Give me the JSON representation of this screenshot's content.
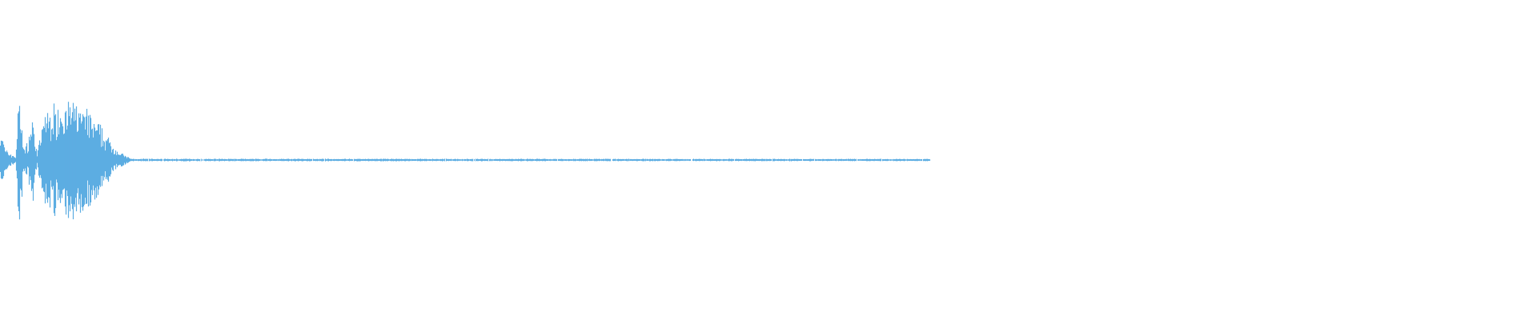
{
  "waveform": {
    "color": "#5dade2",
    "background": "#ffffff",
    "played_fraction_of_width": 0.605,
    "envelope": [
      {
        "t": 0.0,
        "amp": 0.35
      },
      {
        "t": 0.003,
        "amp": 0.1
      },
      {
        "t": 0.01,
        "amp": 0.03
      },
      {
        "t": 0.012,
        "amp": 0.62
      },
      {
        "t": 0.016,
        "amp": 0.08
      },
      {
        "t": 0.021,
        "amp": 0.4
      },
      {
        "t": 0.024,
        "amp": 0.06
      },
      {
        "t": 0.029,
        "amp": 0.45
      },
      {
        "t": 0.04,
        "amp": 0.55
      },
      {
        "t": 0.055,
        "amp": 0.5
      },
      {
        "t": 0.068,
        "amp": 0.25
      },
      {
        "t": 0.077,
        "amp": 0.08
      },
      {
        "t": 0.085,
        "amp": 0.012
      },
      {
        "t": 1.0,
        "amp": 0.01
      }
    ]
  }
}
